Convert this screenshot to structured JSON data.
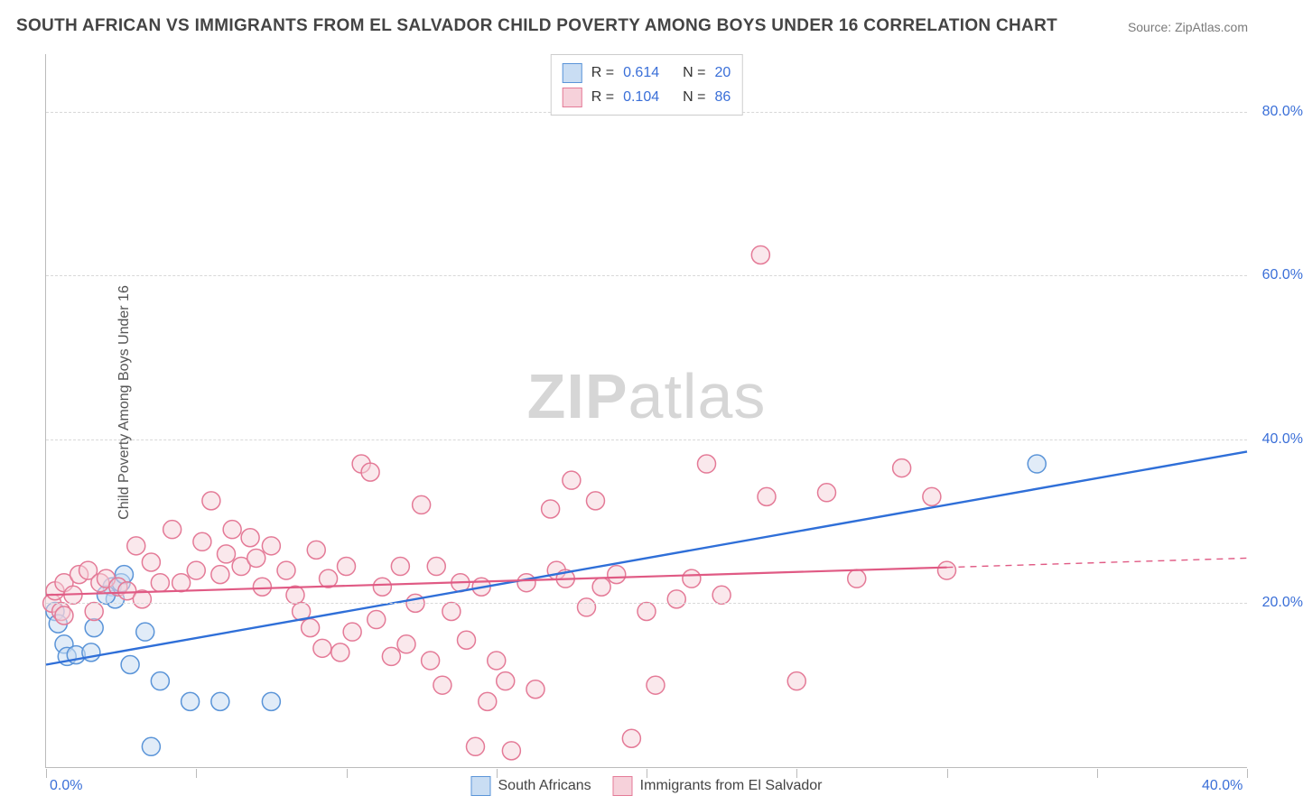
{
  "title": "SOUTH AFRICAN VS IMMIGRANTS FROM EL SALVADOR CHILD POVERTY AMONG BOYS UNDER 16 CORRELATION CHART",
  "source": "Source: ZipAtlas.com",
  "ylabel": "Child Poverty Among Boys Under 16",
  "watermark_bold": "ZIP",
  "watermark_thin": "atlas",
  "chart": {
    "type": "scatter-with-regression",
    "background_color": "#ffffff",
    "grid_color": "#d8d8d8",
    "axis_color": "#bbbbbb",
    "tick_label_color": "#3a6fd8",
    "tick_fontsize": 16,
    "title_color": "#444444",
    "title_fontsize": 19,
    "x_range": [
      0,
      40
    ],
    "y_range": [
      0,
      87
    ],
    "x_ticks": [
      0,
      5,
      10,
      15,
      20,
      25,
      30,
      35,
      40
    ],
    "x_tick_labels": {
      "0": "0.0%",
      "40": "40.0%"
    },
    "y_ticks": [
      20,
      40,
      60,
      80
    ],
    "y_tick_labels": {
      "20": "20.0%",
      "40": "40.0%",
      "60": "60.0%",
      "80": "80.0%"
    },
    "series": [
      {
        "name": "South Africans",
        "marker_fill": "#c9ddf3",
        "marker_stroke": "#5a94d8",
        "marker_fill_opacity": 0.55,
        "marker_radius": 10,
        "line_color": "#2f6fd8",
        "line_width": 2.4,
        "R": "0.614",
        "N": "20",
        "regression": {
          "x1": 0,
          "y1": 12.5,
          "x2": 40,
          "y2": 38.5,
          "solid_until_x": 40
        },
        "points": [
          [
            0.3,
            19.0
          ],
          [
            0.4,
            17.5
          ],
          [
            0.6,
            15.0
          ],
          [
            0.7,
            13.5
          ],
          [
            1.0,
            13.7
          ],
          [
            1.5,
            14.0
          ],
          [
            1.6,
            17.0
          ],
          [
            2.2,
            22.0
          ],
          [
            2.3,
            20.5
          ],
          [
            2.5,
            22.5
          ],
          [
            2.8,
            12.5
          ],
          [
            3.3,
            16.5
          ],
          [
            3.8,
            10.5
          ],
          [
            3.5,
            2.5
          ],
          [
            4.8,
            8.0
          ],
          [
            5.8,
            8.0
          ],
          [
            7.5,
            8.0
          ],
          [
            2.0,
            21.0
          ],
          [
            2.6,
            23.5
          ],
          [
            33.0,
            37.0
          ]
        ]
      },
      {
        "name": "Immigrants from El Salvador",
        "marker_fill": "#f6d1da",
        "marker_stroke": "#e47a97",
        "marker_fill_opacity": 0.5,
        "marker_radius": 10,
        "line_color": "#e05a84",
        "line_width": 2.2,
        "R": "0.104",
        "N": "86",
        "regression": {
          "x1": 0,
          "y1": 21.0,
          "x2": 40,
          "y2": 25.5,
          "solid_until_x": 30
        },
        "points": [
          [
            0.2,
            20.0
          ],
          [
            0.3,
            21.5
          ],
          [
            0.5,
            19.0
          ],
          [
            0.6,
            18.5
          ],
          [
            0.6,
            22.5
          ],
          [
            0.9,
            21.0
          ],
          [
            1.1,
            23.5
          ],
          [
            1.4,
            24.0
          ],
          [
            1.6,
            19.0
          ],
          [
            1.8,
            22.5
          ],
          [
            2.0,
            23.0
          ],
          [
            2.4,
            22.0
          ],
          [
            2.7,
            21.5
          ],
          [
            3.0,
            27.0
          ],
          [
            3.2,
            20.5
          ],
          [
            3.5,
            25.0
          ],
          [
            3.8,
            22.5
          ],
          [
            4.2,
            29.0
          ],
          [
            4.5,
            22.5
          ],
          [
            5.0,
            24.0
          ],
          [
            5.2,
            27.5
          ],
          [
            5.5,
            32.5
          ],
          [
            5.8,
            23.5
          ],
          [
            6.0,
            26.0
          ],
          [
            6.2,
            29.0
          ],
          [
            6.5,
            24.5
          ],
          [
            6.8,
            28.0
          ],
          [
            7.0,
            25.5
          ],
          [
            7.2,
            22.0
          ],
          [
            7.5,
            27.0
          ],
          [
            8.0,
            24.0
          ],
          [
            8.3,
            21.0
          ],
          [
            8.5,
            19.0
          ],
          [
            8.8,
            17.0
          ],
          [
            9.0,
            26.5
          ],
          [
            9.2,
            14.5
          ],
          [
            9.4,
            23.0
          ],
          [
            9.8,
            14.0
          ],
          [
            10.0,
            24.5
          ],
          [
            10.2,
            16.5
          ],
          [
            10.5,
            37.0
          ],
          [
            10.8,
            36.0
          ],
          [
            11.0,
            18.0
          ],
          [
            11.2,
            22.0
          ],
          [
            11.5,
            13.5
          ],
          [
            11.8,
            24.5
          ],
          [
            12.0,
            15.0
          ],
          [
            12.3,
            20.0
          ],
          [
            12.5,
            32.0
          ],
          [
            12.8,
            13.0
          ],
          [
            13.0,
            24.5
          ],
          [
            13.2,
            10.0
          ],
          [
            13.5,
            19.0
          ],
          [
            13.8,
            22.5
          ],
          [
            14.0,
            15.5
          ],
          [
            14.3,
            2.5
          ],
          [
            14.5,
            22.0
          ],
          [
            14.7,
            8.0
          ],
          [
            15.0,
            13.0
          ],
          [
            15.3,
            10.5
          ],
          [
            15.5,
            2.0
          ],
          [
            16.0,
            22.5
          ],
          [
            16.3,
            9.5
          ],
          [
            16.8,
            31.5
          ],
          [
            17.0,
            24.0
          ],
          [
            17.3,
            23.0
          ],
          [
            17.5,
            35.0
          ],
          [
            18.0,
            19.5
          ],
          [
            18.3,
            32.5
          ],
          [
            18.5,
            22.0
          ],
          [
            19.0,
            23.5
          ],
          [
            19.5,
            3.5
          ],
          [
            20.0,
            19.0
          ],
          [
            20.3,
            10.0
          ],
          [
            21.0,
            20.5
          ],
          [
            21.5,
            23.0
          ],
          [
            22.0,
            37.0
          ],
          [
            22.5,
            21.0
          ],
          [
            23.8,
            62.5
          ],
          [
            24.0,
            33.0
          ],
          [
            25.0,
            10.5
          ],
          [
            26.0,
            33.5
          ],
          [
            27.0,
            23.0
          ],
          [
            28.5,
            36.5
          ],
          [
            29.5,
            33.0
          ],
          [
            30.0,
            24.0
          ]
        ]
      }
    ]
  },
  "legend_top": {
    "border_color": "#cccccc",
    "R_label": "R =",
    "N_label": "N ="
  },
  "legend_bottom": [
    {
      "label": "South Africans",
      "fill": "#c9ddf3",
      "stroke": "#5a94d8"
    },
    {
      "label": "Immigrants from El Salvador",
      "fill": "#f6d1da",
      "stroke": "#e47a97"
    }
  ]
}
